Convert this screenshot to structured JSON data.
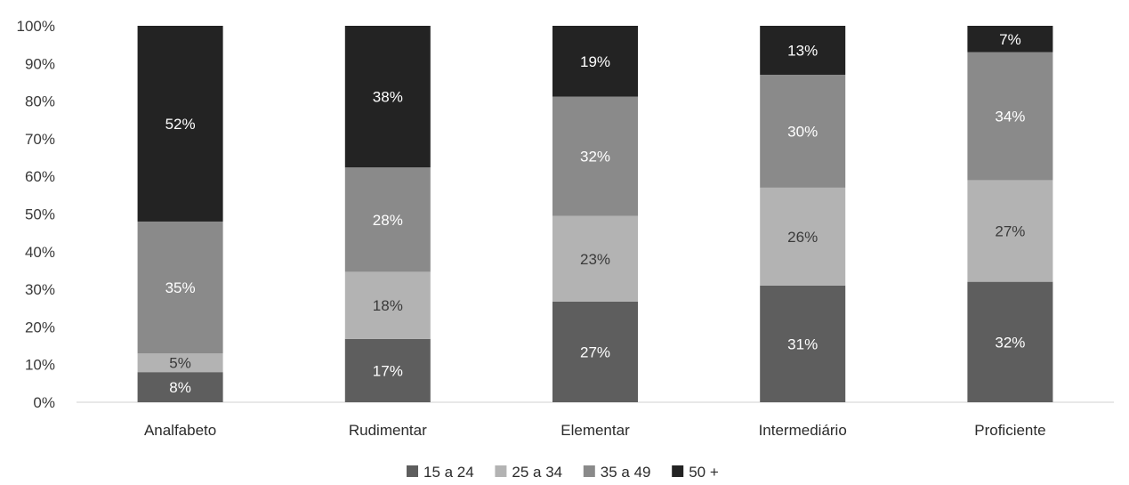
{
  "chart_data": {
    "type": "bar",
    "stacked": true,
    "normalized": true,
    "categories": [
      "Analfabeto",
      "Rudimentar",
      "Elementar",
      "Intermediário",
      "Proficiente"
    ],
    "series": [
      {
        "name": "15 a 24",
        "color": "#5e5e5e",
        "values": [
          8,
          17,
          27,
          31,
          32
        ],
        "labels": [
          "8%",
          "17%",
          "27%",
          "31%",
          "32%"
        ]
      },
      {
        "name": "25 a 34",
        "color": "#b3b3b3",
        "values": [
          5,
          18,
          23,
          26,
          27
        ],
        "labels": [
          "5%",
          "18%",
          "23%",
          "26%",
          "27%"
        ]
      },
      {
        "name": "35 a 49",
        "color": "#8a8a8a",
        "values": [
          35,
          28,
          32,
          30,
          34
        ],
        "labels": [
          "35%",
          "28%",
          "32%",
          "30%",
          "34%"
        ]
      },
      {
        "name": "50 +",
        "color": "#232323",
        "values": [
          52,
          38,
          19,
          13,
          7
        ],
        "labels": [
          "52%",
          "38%",
          "19%",
          "13%",
          "7%"
        ]
      }
    ],
    "y_ticks": [
      "0%",
      "10%",
      "20%",
      "30%",
      "40%",
      "50%",
      "60%",
      "70%",
      "80%",
      "90%",
      "100%"
    ],
    "ylim": [
      0,
      100
    ],
    "grid": false,
    "legend_position": "bottom"
  }
}
